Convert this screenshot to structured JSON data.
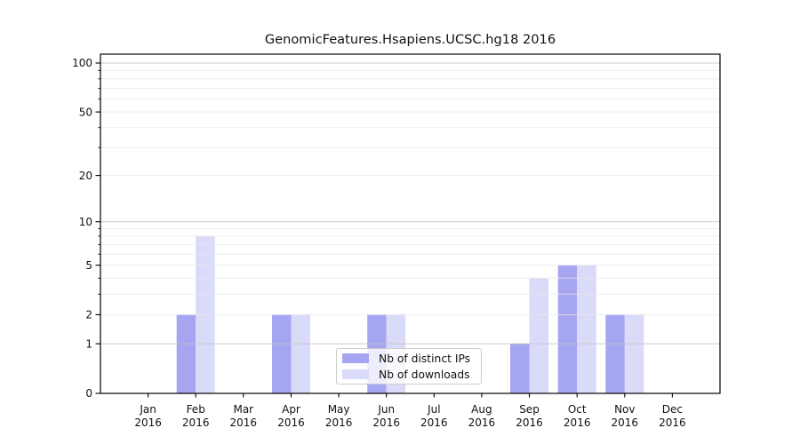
{
  "title": "GenomicFeatures.Hsapiens.UCSC.hg18 2016",
  "chart_data": {
    "type": "bar",
    "title": "GenomicFeatures.Hsapiens.UCSC.hg18 2016",
    "categories": [
      "Jan",
      "Feb",
      "Mar",
      "Apr",
      "May",
      "Jun",
      "Jul",
      "Aug",
      "Sep",
      "Oct",
      "Nov",
      "Dec"
    ],
    "x_tick_year": "2016",
    "series": [
      {
        "name": "Nb of distinct IPs",
        "color": "#a5a5f1",
        "values": [
          0,
          2,
          0,
          2,
          0,
          2,
          0,
          0,
          1,
          5,
          2,
          0
        ]
      },
      {
        "name": "Nb of downloads",
        "color": "#dadaf9",
        "values": [
          0,
          8,
          0,
          2,
          0,
          2,
          0,
          0,
          4,
          5,
          2,
          0
        ]
      }
    ],
    "y_ticks": [
      0,
      1,
      2,
      5,
      10,
      20,
      50,
      100
    ],
    "y_scale": "log1p",
    "ylim": [
      0,
      113
    ],
    "grid": "both",
    "legend_position": "lower-center-inside",
    "colors": {
      "axis": "#000000",
      "major_grid": "#c3c3c3",
      "minor_grid": "#e8e8e8",
      "text": "#111111"
    }
  }
}
